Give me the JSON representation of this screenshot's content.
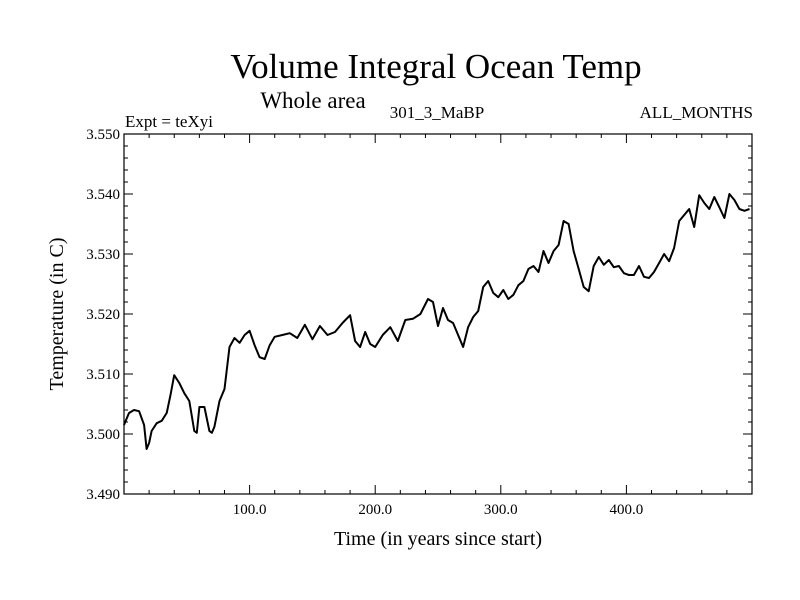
{
  "chart_data": {
    "type": "line",
    "title": "Volume Integral Ocean Temp",
    "subtitle": "Whole area",
    "annotations": {
      "left": "Expt = teXyi",
      "center": "301_3_MaBP",
      "right": "ALL_MONTHS"
    },
    "xlabel": "Time (in years since start)",
    "ylabel": "Temperature (in C)",
    "xlim": [
      0,
      500
    ],
    "ylim": [
      3.49,
      3.55
    ],
    "xticks": [
      {
        "value": 100,
        "label": "100.0"
      },
      {
        "value": 200,
        "label": "200.0"
      },
      {
        "value": 300,
        "label": "300.0"
      },
      {
        "value": 400,
        "label": "400.0"
      }
    ],
    "yticks": [
      {
        "value": 3.49,
        "label": "3.490"
      },
      {
        "value": 3.5,
        "label": "3.500"
      },
      {
        "value": 3.51,
        "label": "3.510"
      },
      {
        "value": 3.52,
        "label": "3.520"
      },
      {
        "value": 3.53,
        "label": "3.530"
      },
      {
        "value": 3.54,
        "label": "3.540"
      },
      {
        "value": 3.55,
        "label": "3.550"
      }
    ],
    "grid": false,
    "line_color": "#000000",
    "series": [
      {
        "x": [
          0,
          4,
          8,
          12,
          16,
          18,
          20,
          22,
          26,
          30,
          34,
          37,
          40,
          44,
          48,
          52,
          56,
          58,
          60,
          64,
          68,
          70,
          72,
          76,
          80,
          84,
          88,
          92,
          96,
          100,
          104,
          108,
          112,
          116,
          120,
          126,
          132,
          138,
          144,
          150,
          156,
          162,
          168,
          174,
          180,
          184,
          188,
          192,
          196,
          200,
          206,
          212,
          218,
          224,
          230,
          236,
          242,
          246,
          250,
          254,
          258,
          262,
          266,
          270,
          274,
          278,
          282,
          286,
          290,
          294,
          298,
          302,
          306,
          310,
          314,
          318,
          322,
          326,
          330,
          334,
          338,
          342,
          346,
          350,
          354,
          358,
          362,
          366,
          370,
          374,
          378,
          382,
          386,
          390,
          394,
          398,
          402,
          406,
          410,
          414,
          418,
          422,
          426,
          430,
          434,
          438,
          442,
          446,
          450,
          454,
          458,
          462,
          466,
          470,
          474,
          478,
          482,
          486,
          490,
          494,
          498
        ],
        "values": [
          3.5015,
          3.5035,
          3.504,
          3.5038,
          3.5015,
          3.4975,
          3.4985,
          3.5005,
          3.5018,
          3.5022,
          3.5035,
          3.5065,
          3.5098,
          3.5085,
          3.5068,
          3.5055,
          3.5005,
          3.5002,
          3.5045,
          3.5045,
          3.5005,
          3.5002,
          3.5012,
          3.5055,
          3.5075,
          3.5145,
          3.516,
          3.5152,
          3.5165,
          3.5172,
          3.5148,
          3.5128,
          3.5125,
          3.5148,
          3.5162,
          3.5165,
          3.5168,
          3.516,
          3.5182,
          3.5158,
          3.518,
          3.5165,
          3.517,
          3.5185,
          3.5198,
          3.5155,
          3.5145,
          3.517,
          3.515,
          3.5145,
          3.5165,
          3.5178,
          3.5155,
          3.519,
          3.5192,
          3.52,
          3.5225,
          3.522,
          3.518,
          3.521,
          3.519,
          3.5185,
          3.5165,
          3.5145,
          3.5178,
          3.5195,
          3.5205,
          3.5245,
          3.5255,
          3.5235,
          3.5228,
          3.524,
          3.5225,
          3.5232,
          3.5248,
          3.5255,
          3.5275,
          3.528,
          3.527,
          3.5305,
          3.5285,
          3.5305,
          3.5315,
          3.5355,
          3.535,
          3.5305,
          3.5275,
          3.5245,
          3.5238,
          3.528,
          3.5295,
          3.5282,
          3.529,
          3.5278,
          3.528,
          3.5268,
          3.5265,
          3.5265,
          3.528,
          3.5262,
          3.526,
          3.527,
          3.5285,
          3.53,
          3.5288,
          3.531,
          3.5355,
          3.5365,
          3.5375,
          3.5345,
          3.5398,
          3.5385,
          3.5375,
          3.5395,
          3.5378,
          3.536,
          3.54,
          3.539,
          3.5375,
          3.5372,
          3.5375
        ]
      }
    ]
  }
}
